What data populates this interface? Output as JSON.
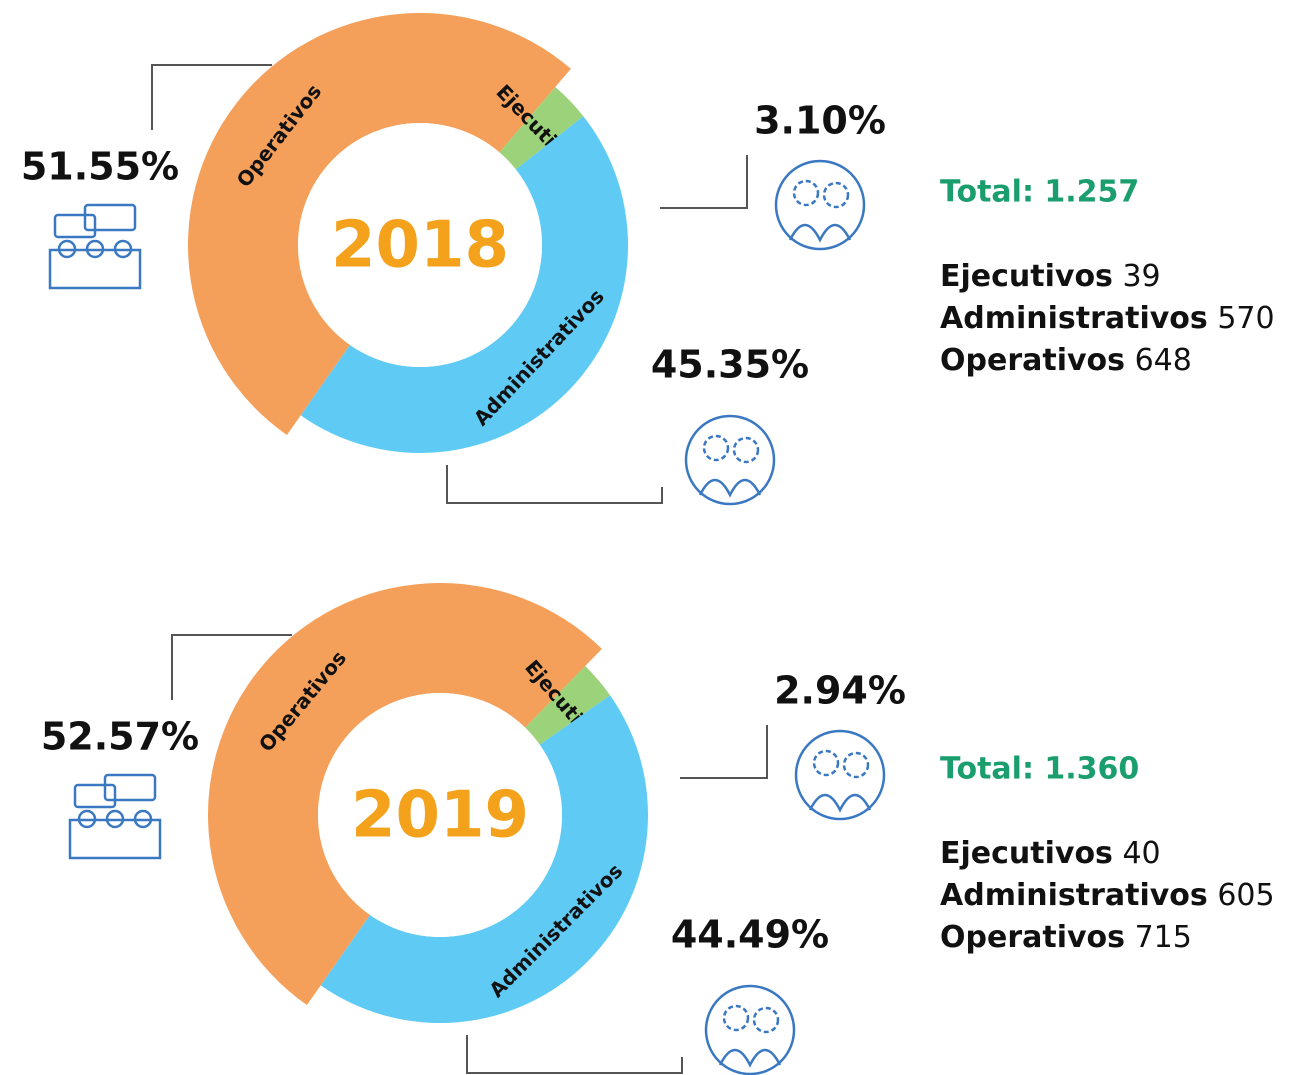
{
  "chart_data": [
    {
      "type": "donut",
      "center_label": "2018",
      "categories": [
        "Operativos",
        "Ejecutivos",
        "Administrativos"
      ],
      "values": [
        51.55,
        3.1,
        45.35
      ],
      "value_labels": [
        "51.55%",
        "3.10%",
        "45.35%"
      ],
      "colors": [
        "#f5a05a",
        "#9bd27a",
        "#5fcbf5"
      ],
      "total_label": "Total: 1.257",
      "counts": [
        {
          "name": "Ejecutivos",
          "value": 39
        },
        {
          "name": "Administrativos",
          "value": 570
        },
        {
          "name": "Operativos",
          "value": 648
        }
      ]
    },
    {
      "type": "donut",
      "center_label": "2019",
      "categories": [
        "Operativos",
        "Ejecutivos",
        "Administrativos"
      ],
      "values": [
        52.57,
        2.94,
        44.49
      ],
      "value_labels": [
        "52.57%",
        "2.94%",
        "44.49%"
      ],
      "colors": [
        "#f5a05a",
        "#9bd27a",
        "#5fcbf5"
      ],
      "total_label": "Total: 1.360",
      "counts": [
        {
          "name": "Ejecutivos",
          "value": 40
        },
        {
          "name": "Administrativos",
          "value": 605
        },
        {
          "name": "Operativos",
          "value": 715
        }
      ]
    }
  ]
}
